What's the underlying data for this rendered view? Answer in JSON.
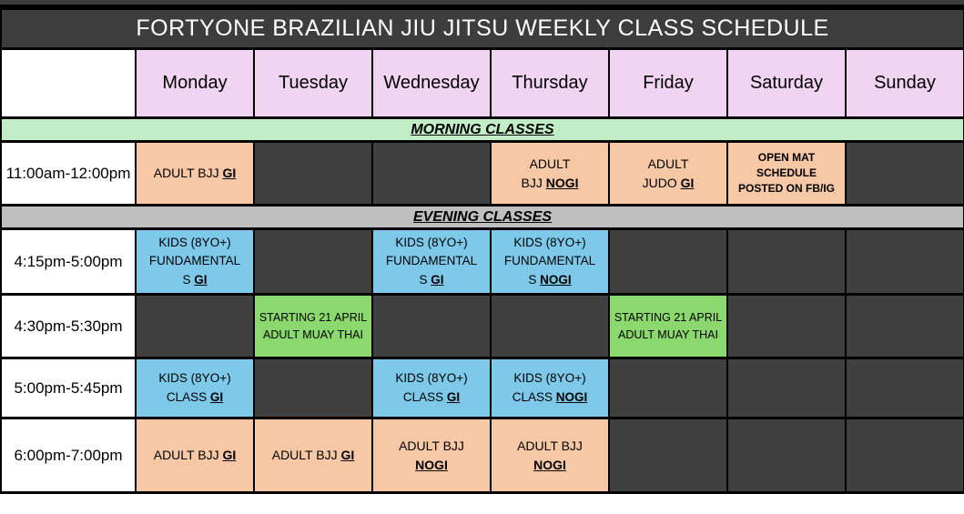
{
  "title": "FORTYONE BRAZILIAN JIU JITSU WEEKLY CLASS SCHEDULE",
  "days": [
    "Monday",
    "Tuesday",
    "Wednesday",
    "Thursday",
    "Friday",
    "Saturday",
    "Sunday"
  ],
  "sections": {
    "morning": "MORNING CLASSES",
    "evening": "EVENING CLASSES"
  },
  "colors": {
    "title_bar": "#3d3d3d",
    "empty_cell": "#404040",
    "day_header": "#f1d4f1",
    "morning_banner": "#c1eec6",
    "evening_banner": "#bfbfbf",
    "adult_class": "#f6c8a6",
    "kids_class": "#7ec9e9",
    "muay_thai_class": "#8bd96e",
    "border": "#000000"
  },
  "rows": [
    {
      "section": "morning",
      "time": "11:00am-12:00pm",
      "cells": [
        {
          "style": "peach",
          "text": "ADULT BJJ ",
          "em": "GI"
        },
        {
          "style": "empty"
        },
        {
          "style": "empty"
        },
        {
          "style": "peach",
          "text": "ADULT\nBJJ ",
          "em": "NOGI"
        },
        {
          "style": "peach",
          "text": "ADULT\nJUDO ",
          "em": "GI"
        },
        {
          "style": "peach-bold",
          "text": "OPEN MAT\nSCHEDULE\nPOSTED ON FB/IG"
        },
        {
          "style": "empty"
        }
      ]
    },
    {
      "section": "evening",
      "time": "4:15pm-5:00pm",
      "cells": [
        {
          "style": "blue",
          "text": "KIDS (8YO+)\nFUNDAMENTAL\nS ",
          "em": "GI"
        },
        {
          "style": "empty"
        },
        {
          "style": "blue",
          "text": "KIDS (8YO+)\nFUNDAMENTAL\nS ",
          "em": "GI"
        },
        {
          "style": "blue",
          "text": "KIDS (8YO+)\nFUNDAMENTAL\nS ",
          "em": "NOGI"
        },
        {
          "style": "empty"
        },
        {
          "style": "empty"
        },
        {
          "style": "empty"
        }
      ]
    },
    {
      "section": "evening",
      "time": "4:30pm-5:30pm",
      "cells": [
        {
          "style": "empty"
        },
        {
          "style": "green",
          "text": "STARTING 21 APRIL\nADULT MUAY THAI"
        },
        {
          "style": "empty"
        },
        {
          "style": "empty"
        },
        {
          "style": "green",
          "text": "STARTING 21 APRIL\nADULT MUAY THAI"
        },
        {
          "style": "empty"
        },
        {
          "style": "empty"
        }
      ]
    },
    {
      "section": "evening",
      "time": "5:00pm-5:45pm",
      "cells": [
        {
          "style": "blue",
          "text": "KIDS (8YO+)\nCLASS ",
          "em": "GI"
        },
        {
          "style": "empty"
        },
        {
          "style": "blue",
          "text": "KIDS (8YO+)\nCLASS ",
          "em": "GI"
        },
        {
          "style": "blue",
          "text": "KIDS (8YO+)\nCLASS ",
          "em": "NOGI"
        },
        {
          "style": "empty"
        },
        {
          "style": "empty"
        },
        {
          "style": "empty"
        }
      ]
    },
    {
      "section": "evening",
      "time": "6:00pm-7:00pm",
      "cells": [
        {
          "style": "peach",
          "text": "ADULT BJJ ",
          "em": "GI"
        },
        {
          "style": "peach",
          "text": "ADULT BJJ ",
          "em": "GI"
        },
        {
          "style": "peach",
          "text": "ADULT BJJ\n",
          "em": "NOGI"
        },
        {
          "style": "peach",
          "text": "ADULT BJJ\n",
          "em": "NOGI"
        },
        {
          "style": "empty"
        },
        {
          "style": "empty"
        },
        {
          "style": "empty"
        }
      ]
    }
  ]
}
